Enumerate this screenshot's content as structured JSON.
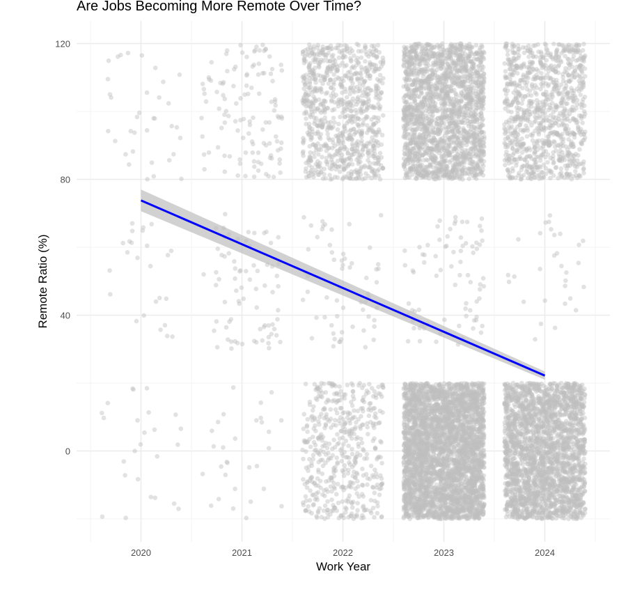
{
  "chart_data": {
    "type": "scatter",
    "title": "Are Jobs Becoming More Remote Over Time?",
    "xlabel": "Work Year",
    "ylabel": "Remote Ratio (%)",
    "x_ticks": [
      "2020",
      "2021",
      "2022",
      "2023",
      "2024"
    ],
    "y_ticks": [
      "0",
      "40",
      "80",
      "120"
    ],
    "xlim": [
      2019.5,
      2024.5
    ],
    "ylim": [
      -25,
      125
    ],
    "grid": true,
    "legend": "none",
    "jitter": {
      "width": 0.4,
      "height": 20
    },
    "point_color": "#bebebe",
    "line_color": "#0000ff",
    "band_color": "#bdbdbd",
    "groups": [
      {
        "year": 2020,
        "remote_ratio": 0,
        "count": 25
      },
      {
        "year": 2020,
        "remote_ratio": 50,
        "count": 25
      },
      {
        "year": 2020,
        "remote_ratio": 100,
        "count": 35
      },
      {
        "year": 2021,
        "remote_ratio": 0,
        "count": 30
      },
      {
        "year": 2021,
        "remote_ratio": 50,
        "count": 75
      },
      {
        "year": 2021,
        "remote_ratio": 100,
        "count": 120
      },
      {
        "year": 2022,
        "remote_ratio": 0,
        "count": 500
      },
      {
        "year": 2022,
        "remote_ratio": 50,
        "count": 60
      },
      {
        "year": 2022,
        "remote_ratio": 100,
        "count": 900
      },
      {
        "year": 2023,
        "remote_ratio": 0,
        "count": 3500
      },
      {
        "year": 2023,
        "remote_ratio": 50,
        "count": 80
      },
      {
        "year": 2023,
        "remote_ratio": 100,
        "count": 2000
      },
      {
        "year": 2024,
        "remote_ratio": 0,
        "count": 2500
      },
      {
        "year": 2024,
        "remote_ratio": 50,
        "count": 30
      },
      {
        "year": 2024,
        "remote_ratio": 100,
        "count": 1000
      }
    ],
    "trend_line": {
      "x": [
        2020,
        2024
      ],
      "y": [
        73.8,
        22.2
      ],
      "ci_halfwidth": [
        3.2,
        1.2
      ]
    }
  }
}
